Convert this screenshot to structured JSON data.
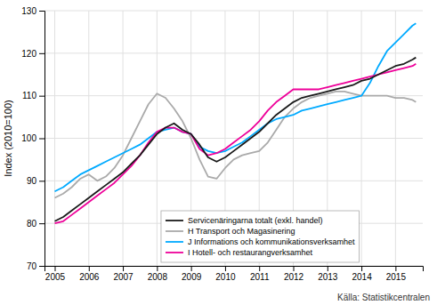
{
  "chart_data": {
    "type": "line",
    "ylabel": "Index (2010=100)",
    "annotations": [
      "Källa:  Statistikcentralen"
    ],
    "xlim": [
      2004.7,
      2015.8
    ],
    "ylim": [
      70,
      130
    ],
    "xticks": [
      2005,
      2006,
      2007,
      2008,
      2009,
      2010,
      2011,
      2012,
      2013,
      2014,
      2015
    ],
    "yticks": [
      70,
      80,
      90,
      100,
      110,
      120,
      130
    ],
    "grid": true,
    "legend": "bottom",
    "x": [
      2005.0,
      2005.25,
      2005.5,
      2005.75,
      2006.0,
      2006.25,
      2006.5,
      2006.75,
      2007.0,
      2007.25,
      2007.5,
      2007.75,
      2008.0,
      2008.25,
      2008.5,
      2008.75,
      2009.0,
      2009.25,
      2009.5,
      2009.75,
      2010.0,
      2010.25,
      2010.5,
      2010.75,
      2011.0,
      2011.25,
      2011.5,
      2011.75,
      2012.0,
      2012.25,
      2012.5,
      2012.75,
      2013.0,
      2013.25,
      2013.5,
      2013.75,
      2014.0,
      2014.25,
      2014.5,
      2014.75,
      2015.0,
      2015.25,
      2015.5,
      2015.6
    ],
    "series": [
      {
        "name": "Servicenäringarna totalt  (exkl. handel)",
        "color": "#1a1a1a",
        "values": [
          80.5,
          81.5,
          83.0,
          84.5,
          86.0,
          87.5,
          89.0,
          90.5,
          92.0,
          94.0,
          96.0,
          98.5,
          101.0,
          102.5,
          103.5,
          102.0,
          101.0,
          98.5,
          95.5,
          94.5,
          95.5,
          97.0,
          98.5,
          100.0,
          101.5,
          103.5,
          105.5,
          107.0,
          108.5,
          109.5,
          110.0,
          110.5,
          111.0,
          111.5,
          112.0,
          112.5,
          113.5,
          114.0,
          115.0,
          116.0,
          117.0,
          117.5,
          118.5,
          119.0
        ]
      },
      {
        "name": "H Transport och Magasinering",
        "color": "#aaaaaa",
        "values": [
          86.0,
          87.0,
          88.5,
          90.5,
          91.5,
          90.0,
          91.0,
          93.0,
          96.0,
          100.0,
          104.0,
          108.0,
          110.5,
          109.5,
          107.0,
          104.0,
          100.0,
          95.0,
          91.0,
          90.5,
          93.0,
          95.0,
          96.0,
          96.5,
          97.0,
          99.0,
          102.0,
          105.0,
          107.0,
          108.5,
          109.5,
          110.0,
          110.5,
          111.0,
          111.0,
          110.5,
          110.0,
          110.0,
          110.0,
          110.0,
          109.5,
          109.5,
          109.0,
          108.5
        ]
      },
      {
        "name": "J Informations och kommunikationsverksamhet",
        "color": "#00aaff",
        "values": [
          87.5,
          88.5,
          90.0,
          91.5,
          92.5,
          93.5,
          94.5,
          95.5,
          96.5,
          97.5,
          98.5,
          100.0,
          101.5,
          102.0,
          102.5,
          101.5,
          101.0,
          98.0,
          97.0,
          96.5,
          97.0,
          98.0,
          99.0,
          100.5,
          102.0,
          103.5,
          104.5,
          105.0,
          105.5,
          106.5,
          107.0,
          107.5,
          108.0,
          108.5,
          109.0,
          109.5,
          110.0,
          113.0,
          117.0,
          120.5,
          122.5,
          124.5,
          126.5,
          127.0
        ]
      },
      {
        "name": "I Hotell- och restaurangverksamhet",
        "color": "#ee0099",
        "values": [
          80.0,
          80.5,
          82.0,
          83.5,
          85.0,
          86.5,
          88.0,
          89.5,
          91.5,
          93.5,
          96.0,
          99.0,
          101.5,
          102.5,
          102.5,
          101.5,
          101.0,
          97.5,
          96.0,
          96.5,
          97.5,
          99.0,
          100.5,
          102.0,
          104.0,
          106.5,
          108.5,
          110.0,
          111.5,
          111.5,
          111.5,
          111.5,
          112.0,
          112.5,
          113.0,
          113.5,
          114.0,
          114.5,
          115.0,
          115.5,
          116.0,
          116.5,
          117.0,
          117.5
        ]
      }
    ]
  }
}
